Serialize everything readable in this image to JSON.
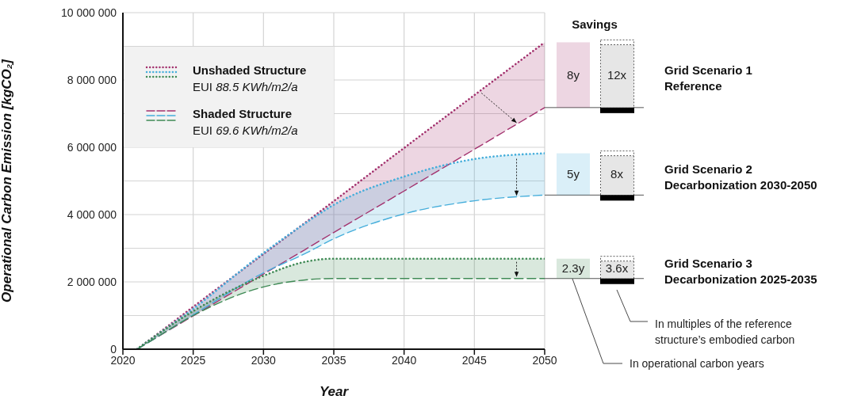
{
  "chart_data": {
    "type": "line",
    "xlabel": "Year",
    "ylabel": "Operational Carbon Emission [kgCO₂]",
    "x": [
      2021,
      2022,
      2025,
      2030,
      2033,
      2035,
      2040,
      2045,
      2050
    ],
    "series": [
      {
        "name": "Unshaded Structure",
        "color": "#a3326e",
        "line_style": "dotted",
        "values": [
          0,
          310000,
          1260000,
          2830000,
          3770000,
          4400000,
          5980000,
          7550000,
          9120000
        ],
        "lower": [
          0,
          250000,
          990000,
          2230000,
          2970000,
          3470000,
          4700000,
          5940000,
          7180000
        ],
        "upper": [
          0,
          310000,
          1260000,
          2830000,
          3770000,
          4400000,
          5980000,
          7550000,
          9120000
        ]
      },
      {
        "name": "Shaded Structure",
        "color": "#a3326e",
        "line_style": "dashed",
        "values": [
          0,
          250000,
          990000,
          2230000,
          2970000,
          3470000,
          4700000,
          5940000,
          7180000
        ]
      },
      {
        "color": "#46aedb",
        "line_style": "dotted",
        "values": [
          0,
          300000,
          1200000,
          2860000,
          3750000,
          4290000,
          5130000,
          5650000,
          5820000
        ],
        "lower": [
          0,
          250000,
          1020000,
          2270000,
          2850000,
          3280000,
          4020000,
          4410000,
          4580000
        ],
        "upper": [
          0,
          300000,
          1200000,
          2860000,
          3750000,
          4290000,
          5130000,
          5650000,
          5820000
        ]
      },
      {
        "color": "#46aedb",
        "line_style": "dashed",
        "values": [
          0,
          250000,
          1020000,
          2270000,
          2850000,
          3280000,
          4020000,
          4410000,
          4580000
        ]
      },
      {
        "color": "#3f8a55",
        "line_style": "dotted",
        "values": [
          0,
          300000,
          1130000,
          2180000,
          2600000,
          2690000,
          2690000,
          2690000,
          2690000
        ],
        "lower": [
          0,
          250000,
          1000000,
          1850000,
          2060000,
          2100000,
          2100000,
          2100000,
          2100000
        ],
        "upper": [
          0,
          300000,
          1130000,
          2180000,
          2600000,
          2690000,
          2690000,
          2690000,
          2690000
        ]
      },
      {
        "color": "#3f8a55",
        "line_style": "dashed",
        "values": [
          0,
          250000,
          1000000,
          1850000,
          2060000,
          2100000,
          2100000,
          2100000,
          2100000
        ]
      }
    ],
    "xlim": [
      2020,
      2050
    ],
    "xticks": [
      2020,
      2025,
      2030,
      2035,
      2040,
      2045,
      2050
    ],
    "ylim": [
      0,
      10000000
    ],
    "yticks": [
      {
        "value": 0,
        "label": "0"
      },
      {
        "value": 1000000,
        "label": null
      },
      {
        "value": 2000000,
        "label": "2 000 000"
      },
      {
        "value": 3000000,
        "label": null
      },
      {
        "value": 4000000,
        "label": "4 000 000"
      },
      {
        "value": 5000000,
        "label": null
      },
      {
        "value": 6000000,
        "label": "6 000 000"
      },
      {
        "value": 7000000,
        "label": null
      },
      {
        "value": 8000000,
        "label": "8 000 000"
      },
      {
        "value": 9000000,
        "label": null
      },
      {
        "value": 10000000,
        "label": "10 000 000"
      }
    ],
    "grid": true,
    "legend": "top left",
    "annotations": [
      "EUI 88.5 KWh/m2/a",
      "EUI 69.6 KWh/m2/a",
      "Savings",
      "Grid Scenario 1\nReference",
      "Grid Scenario 2\nDecarbonization 2030-2050",
      "Grid Scenario 3\nDecarbonization 2025-2035",
      "8y",
      "12x",
      "5y",
      "8x",
      "2.3y",
      "3.6x",
      "In multiples of the reference\nstructure’s embodied carbon",
      "In operational carbon years"
    ]
  }
}
